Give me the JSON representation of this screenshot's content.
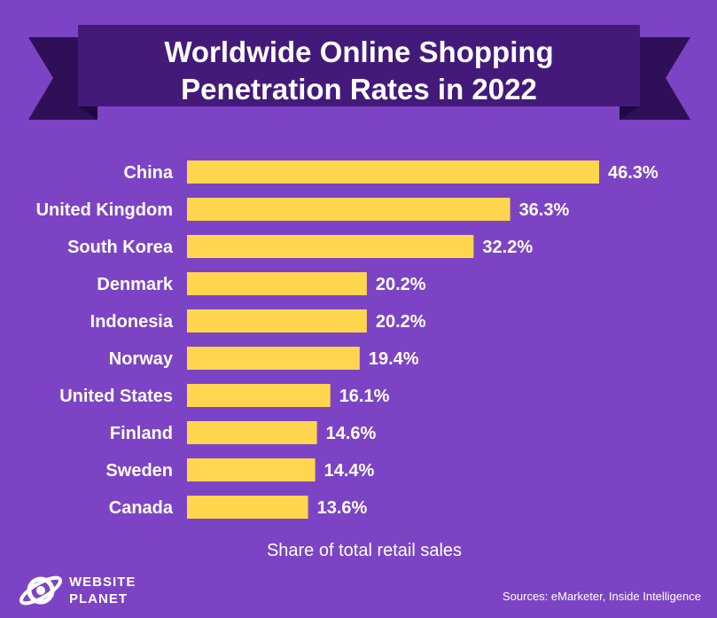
{
  "title_lines": [
    "Worldwide Online Shopping",
    "Penetration Rates in 2022"
  ],
  "source": "Sources: eMarketer, Inside Intelligence",
  "brand": {
    "line1": "WEBSITE",
    "line2": "PLANET"
  },
  "colors": {
    "background": "#7c44c4",
    "banner": "#431a7a",
    "banner_tail": "#2e0f58",
    "bar": "#ffd64d",
    "text": "#ffffff"
  },
  "chart_data": {
    "type": "bar",
    "orientation": "horizontal",
    "categories": [
      "China",
      "United Kingdom",
      "South Korea",
      "Denmark",
      "Indonesia",
      "Norway",
      "United States",
      "Finland",
      "Sweden",
      "Canada"
    ],
    "values": [
      46.3,
      36.3,
      32.2,
      20.2,
      20.2,
      19.4,
      16.1,
      14.6,
      14.4,
      13.6
    ],
    "value_labels": [
      "46.3%",
      "36.3%",
      "32.2%",
      "20.2%",
      "20.2%",
      "19.4%",
      "16.1%",
      "14.6%",
      "14.4%",
      "13.6%"
    ],
    "xlabel": "Share of total retail sales",
    "grid": false,
    "legend": false
  }
}
